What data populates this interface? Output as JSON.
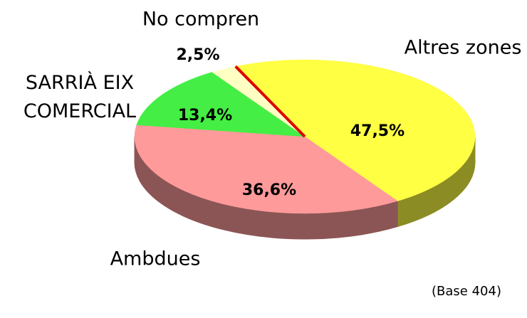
{
  "chart_data": {
    "type": "pie",
    "categories": [
      "Altres zones",
      "Ambdues",
      "SARRIÀ EIX COMERCIAL",
      "No compren"
    ],
    "values": [
      47.5,
      36.6,
      13.4,
      2.5
    ],
    "value_labels": [
      "47,5%",
      "36,6%",
      "13,4%",
      "2,5%"
    ],
    "colors": [
      "#ffff44",
      "#ff9a9a",
      "#44ee44",
      "#ffffc4"
    ],
    "annotation": "(Base  404)"
  }
}
